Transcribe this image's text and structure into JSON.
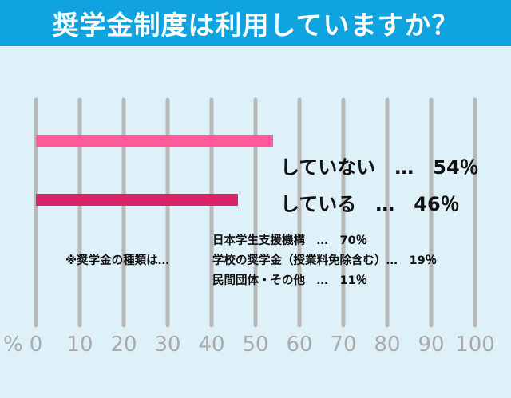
{
  "title": "奨学金制度は利用していますか？",
  "chart_data": {
    "type": "bar",
    "orientation": "horizontal",
    "categories": [
      "していない",
      "している"
    ],
    "values": [
      54,
      46
    ],
    "value_labels": [
      "していない　…　54％",
      "している　…　46％"
    ],
    "bar_colors": [
      "#ff5a9a",
      "#d92468"
    ],
    "xlim": [
      0,
      100
    ],
    "x_ticks": [
      "0",
      "10",
      "20",
      "30",
      "40",
      "50",
      "60",
      "70",
      "80",
      "90",
      "100"
    ],
    "x_unit": "%",
    "grid": true,
    "gridline_color": "#b8b8b8"
  },
  "note": {
    "lead": "※奨学金の種類は…",
    "items": [
      "日本学生支援機構　…　70％",
      "学校の奨学金（授業料免除含む）…　19％",
      "民間団体・その他　…　11％"
    ]
  }
}
